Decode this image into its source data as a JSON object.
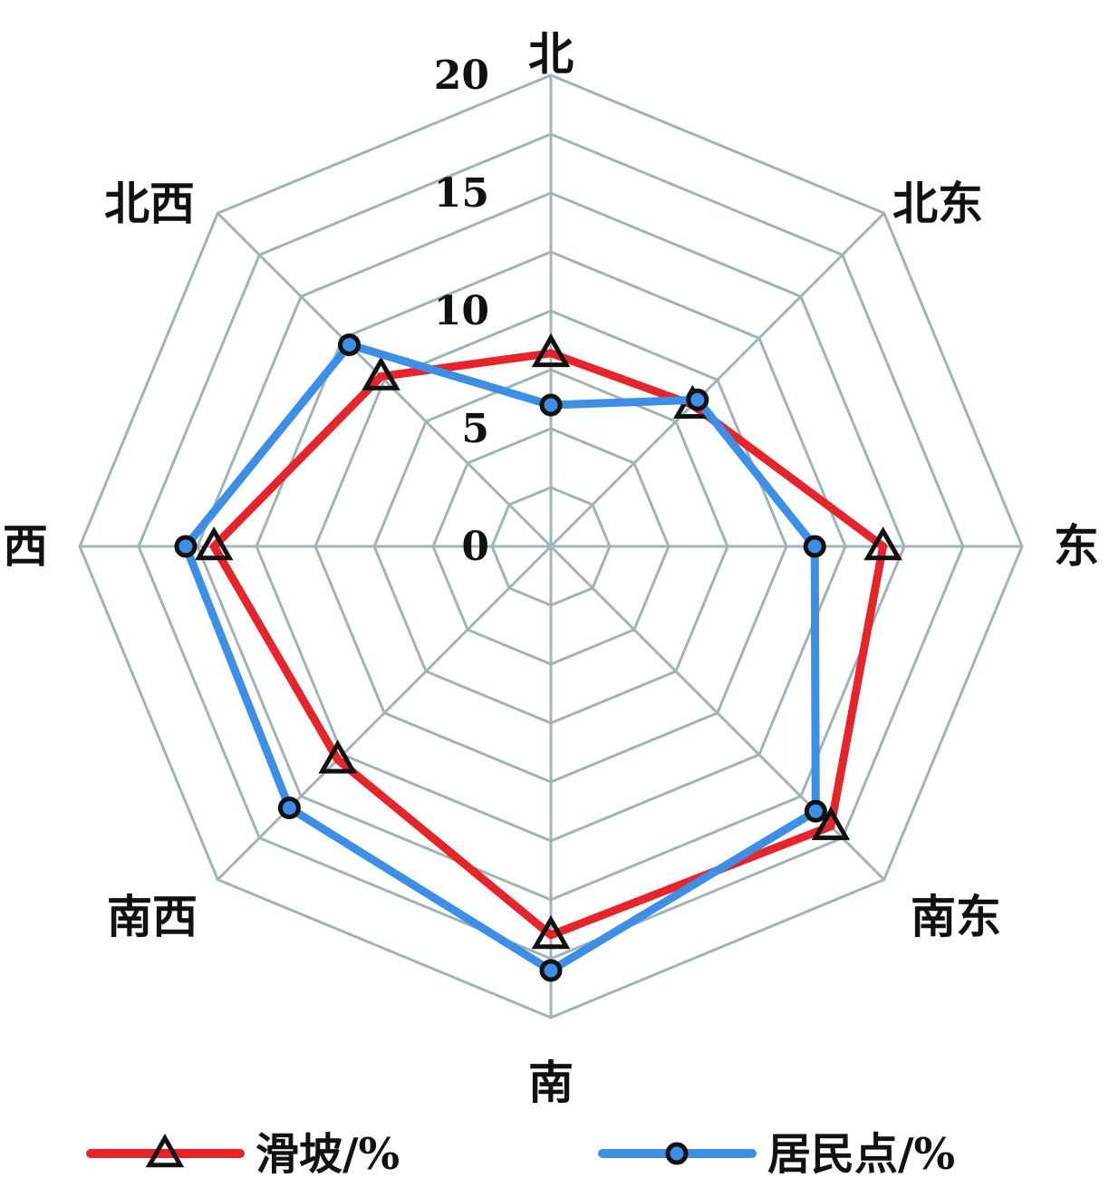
{
  "chart_data": {
    "type": "radar",
    "axes": [
      "北",
      "北东",
      "东",
      "南东",
      "南",
      "南西",
      "西",
      "北西"
    ],
    "ticks": [
      "0",
      "5",
      "10",
      "15",
      "20"
    ],
    "rlim": [
      0,
      20
    ],
    "grid": true,
    "legend_position": "bottom",
    "series": [
      {
        "name": "滑坡/%",
        "color": "#e8242b",
        "marker": "triangle",
        "values": [
          8.2,
          8.5,
          14.1,
          16.8,
          16.5,
          12.8,
          14.3,
          10.2
        ]
      },
      {
        "name": "居民点/%",
        "color": "#3d8ee6",
        "marker": "circle",
        "values": [
          6.0,
          8.8,
          11.2,
          15.9,
          18.0,
          15.7,
          15.5,
          12.1
        ]
      }
    ]
  }
}
